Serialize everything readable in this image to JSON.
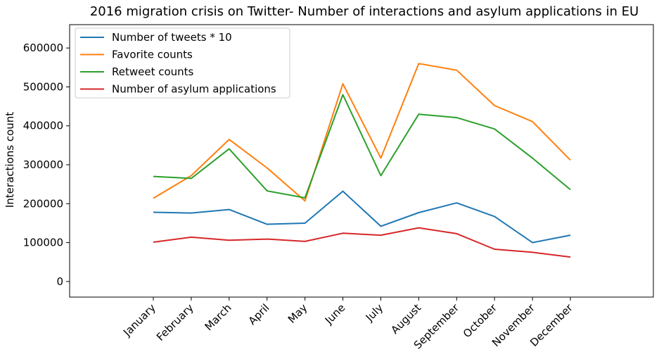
{
  "chart_data": {
    "type": "line",
    "title": "2016 migration crisis on Twitter- Number of interactions and asylum applications in EU",
    "xlabel": "",
    "ylabel": "Interactions count",
    "ylim": [
      -40000,
      660000
    ],
    "yticks": [
      0,
      100000,
      200000,
      300000,
      400000,
      500000,
      600000
    ],
    "yticklabels": [
      "0",
      "100000",
      "200000",
      "300000",
      "400000",
      "500000",
      "600000"
    ],
    "categories": [
      "January",
      "February",
      "March",
      "April",
      "May",
      "June",
      "July",
      "August",
      "September",
      "October",
      "November",
      "December"
    ],
    "grid": false,
    "legend_position": "top-left",
    "series": [
      {
        "name": "Number of tweets * 10",
        "color": "#1f77b4",
        "values": [
          178000,
          176000,
          185000,
          147000,
          150000,
          232000,
          142000,
          177000,
          202000,
          167000,
          100000,
          119000
        ]
      },
      {
        "name": "Favorite counts",
        "color": "#ff7f0e",
        "values": [
          214000,
          272000,
          365000,
          292000,
          207000,
          508000,
          317000,
          560000,
          543000,
          452000,
          411000,
          312000
        ]
      },
      {
        "name": "Retweet counts",
        "color": "#2ca02c",
        "values": [
          270000,
          265000,
          341000,
          233000,
          215000,
          480000,
          272000,
          430000,
          421000,
          392000,
          317000,
          236000
        ]
      },
      {
        "name": "Number of asylum applications",
        "color": "#d62728",
        "values": [
          101000,
          114000,
          106000,
          109000,
          103000,
          124000,
          119000,
          138000,
          123000,
          83000,
          75000,
          63000
        ]
      }
    ]
  }
}
